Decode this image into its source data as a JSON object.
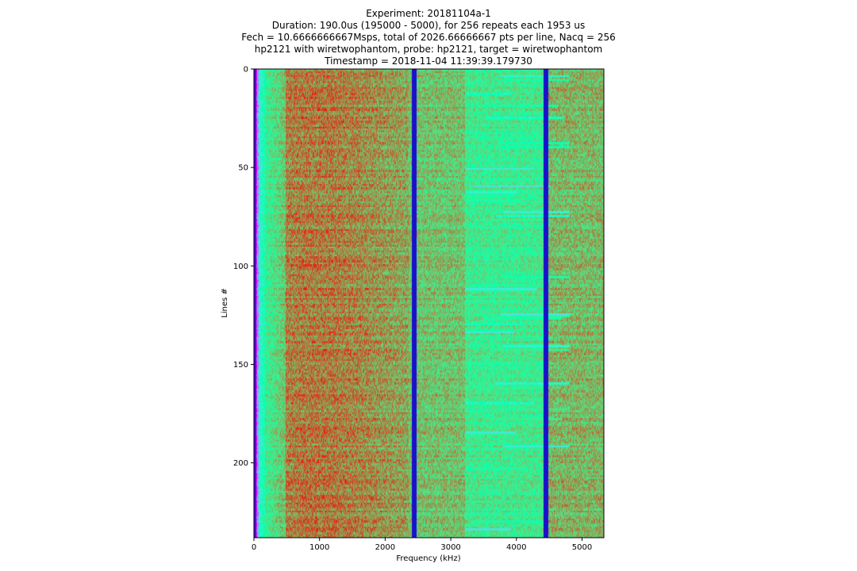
{
  "chart_data": {
    "type": "heatmap",
    "title": [
      "Experiment: 20181104a-1",
      "Duration: 190.0us (195000 - 5000), for 256 repeats each 1953 us",
      "Fech = 10.6666666667Msps, total of 2026.66666667 pts per line, Nacq = 256",
      "hp2121 with wiretwophantom, probe: hp2121, target = wiretwophantom",
      "Timestamp = 2018-11-04 11:39:39.179730"
    ],
    "xlabel": "Frequency (kHz)",
    "ylabel": "Lines #",
    "xlim": [
      0,
      5333
    ],
    "ylim": [
      238,
      0
    ],
    "x_ticks": [
      0,
      1000,
      2000,
      3000,
      4000,
      5000
    ],
    "x_tick_labels": [
      "0",
      "1000",
      "2000",
      "3000",
      "4000",
      "5000"
    ],
    "y_ticks": [
      0,
      50,
      100,
      150,
      200
    ],
    "y_tick_labels": [
      "0",
      "50",
      "100",
      "150",
      "200"
    ],
    "colormap": "rainbow",
    "rows": 238,
    "columns": 532,
    "narrowband_lines_khz": [
      2440,
      4440
    ],
    "colors": {
      "background_level": "#ff8c1a",
      "peak_level": "#e8300f",
      "mid_level": "#ffff33",
      "low_level": "#33ff33",
      "lowest_level": "#5a00e0",
      "line_color": "#1a10cc"
    }
  }
}
